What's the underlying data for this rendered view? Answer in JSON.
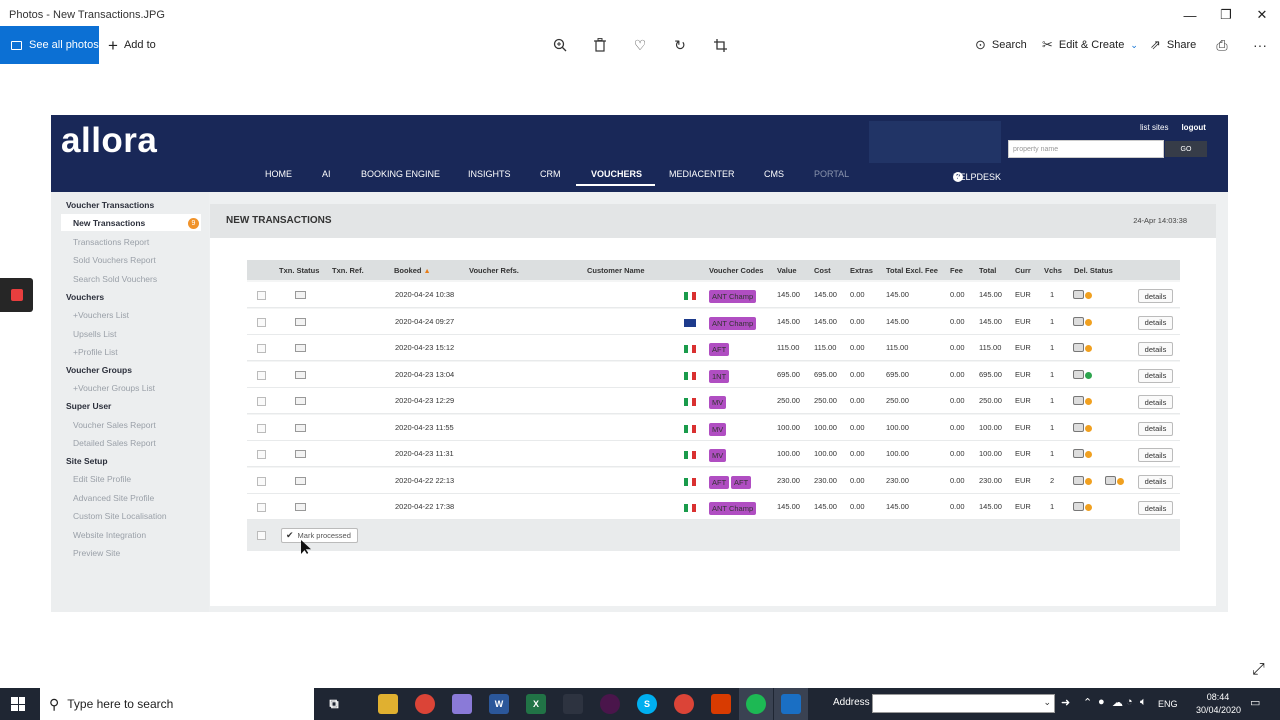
{
  "window": {
    "title": "Photos - New Transactions.JPG",
    "min": "—",
    "max": "❐",
    "close": "✕"
  },
  "photos_toolbar": {
    "see_all": "See all photos",
    "add_to": "Add to",
    "search": "Search",
    "edit_create": "Edit & Create",
    "share": "Share",
    "more": "···"
  },
  "site": {
    "logo": "allora",
    "top_links": {
      "list_sites": "list sites",
      "logout": "logout"
    },
    "property_placeholder": "property name",
    "go": "GO",
    "nav": [
      "HOME",
      "AI",
      "BOOKING ENGINE",
      "INSIGHTS",
      "CRM",
      "VOUCHERS",
      "MEDIACENTER",
      "CMS",
      "PORTAL"
    ],
    "helpdesk": "HELPDESK",
    "sidebar": {
      "voucher_transactions": "Voucher Transactions",
      "new_transactions": "New Transactions",
      "new_count": "9",
      "transactions_report": "Transactions Report",
      "sold_vouchers_report": "Sold Vouchers Report",
      "search_sold_vouchers": "Search Sold Vouchers",
      "vouchers": "Vouchers",
      "vouchers_list": "+Vouchers List",
      "upsells_list": "Upsells List",
      "profile_list": "+Profile List",
      "voucher_groups": "Voucher Groups",
      "voucher_groups_list": "+Voucher Groups List",
      "super_user": "Super User",
      "voucher_sales_report": "Voucher Sales Report",
      "detailed_sales_report": "Detailed Sales Report",
      "site_setup": "Site Setup",
      "edit_site_profile": "Edit Site Profile",
      "advanced_site_profile": "Advanced Site Profile",
      "custom_site_localisation": "Custom Site Localisation",
      "website_integration": "Website Integration",
      "preview_site": "Preview Site"
    },
    "main": {
      "title": "NEW TRANSACTIONS",
      "timestamp": "24-Apr 14:03:38",
      "columns": {
        "txn_status": "Txn. Status",
        "txn_ref": "Txn. Ref.",
        "booked": "Booked",
        "booked_arrow": "▲",
        "voucher_refs": "Voucher Refs.",
        "customer_name": "Customer Name",
        "voucher_codes": "Voucher Codes",
        "value": "Value",
        "cost": "Cost",
        "extras": "Extras",
        "total_excl_fee": "Total Excl. Fee",
        "fee": "Fee",
        "total": "Total",
        "curr": "Curr",
        "vchs": "Vchs",
        "del_status": "Del. Status"
      },
      "rows": [
        {
          "booked": "2020-04-24 10:38",
          "flag": "it",
          "codes": [
            "ANT Champ"
          ],
          "value": "145.00",
          "cost": "145.00",
          "extras": "0.00",
          "excl": "145.00",
          "fee": "0.00",
          "total": "145.00",
          "curr": "EUR",
          "vchs": "1",
          "details": "details"
        },
        {
          "booked": "2020-04-24 09:27",
          "flag": "au",
          "codes": [
            "ANT Champ"
          ],
          "value": "145.00",
          "cost": "145.00",
          "extras": "0.00",
          "excl": "145.00",
          "fee": "0.00",
          "total": "145.00",
          "curr": "EUR",
          "vchs": "1",
          "details": "details"
        },
        {
          "booked": "2020-04-23 15:12",
          "flag": "it",
          "codes": [
            "AFT"
          ],
          "value": "115.00",
          "cost": "115.00",
          "extras": "0.00",
          "excl": "115.00",
          "fee": "0.00",
          "total": "115.00",
          "curr": "EUR",
          "vchs": "1",
          "details": "details"
        },
        {
          "booked": "2020-04-23 13:04",
          "flag": "it",
          "codes": [
            "1NT"
          ],
          "value": "695.00",
          "cost": "695.00",
          "extras": "0.00",
          "excl": "695.00",
          "fee": "0.00",
          "total": "695.00",
          "curr": "EUR",
          "vchs": "1",
          "details": "details"
        },
        {
          "booked": "2020-04-23 12:29",
          "flag": "it",
          "codes": [
            "MV"
          ],
          "value": "250.00",
          "cost": "250.00",
          "extras": "0.00",
          "excl": "250.00",
          "fee": "0.00",
          "total": "250.00",
          "curr": "EUR",
          "vchs": "1",
          "details": "details"
        },
        {
          "booked": "2020-04-23 11:55",
          "flag": "it",
          "codes": [
            "MV"
          ],
          "value": "100.00",
          "cost": "100.00",
          "extras": "0.00",
          "excl": "100.00",
          "fee": "0.00",
          "total": "100.00",
          "curr": "EUR",
          "vchs": "1",
          "details": "details"
        },
        {
          "booked": "2020-04-23 11:31",
          "flag": "it",
          "codes": [
            "MV"
          ],
          "value": "100.00",
          "cost": "100.00",
          "extras": "0.00",
          "excl": "100.00",
          "fee": "0.00",
          "total": "100.00",
          "curr": "EUR",
          "vchs": "1",
          "details": "details"
        },
        {
          "booked": "2020-04-22 22:13",
          "flag": "it",
          "codes": [
            "AFT",
            "AFT"
          ],
          "value": "230.00",
          "cost": "230.00",
          "extras": "0.00",
          "excl": "230.00",
          "fee": "0.00",
          "total": "230.00",
          "curr": "EUR",
          "vchs": "2",
          "details": "details"
        },
        {
          "booked": "2020-04-22 17:38",
          "flag": "it",
          "codes": [
            "ANT Champ"
          ],
          "value": "145.00",
          "cost": "145.00",
          "extras": "0.00",
          "excl": "145.00",
          "fee": "0.00",
          "total": "145.00",
          "curr": "EUR",
          "vchs": "1",
          "details": "details"
        }
      ],
      "mark_processed": "Mark processed"
    }
  },
  "taskbar": {
    "search_placeholder": "Type here to search",
    "address_label": "Address",
    "language": "ENG",
    "time": "08:44",
    "date": "30/04/2020"
  },
  "colors": {
    "brand_navy": "#192858",
    "voucher_code": "#b04ec2",
    "accent_blue": "#0c70d4",
    "badge_orange": "#f0932b"
  }
}
